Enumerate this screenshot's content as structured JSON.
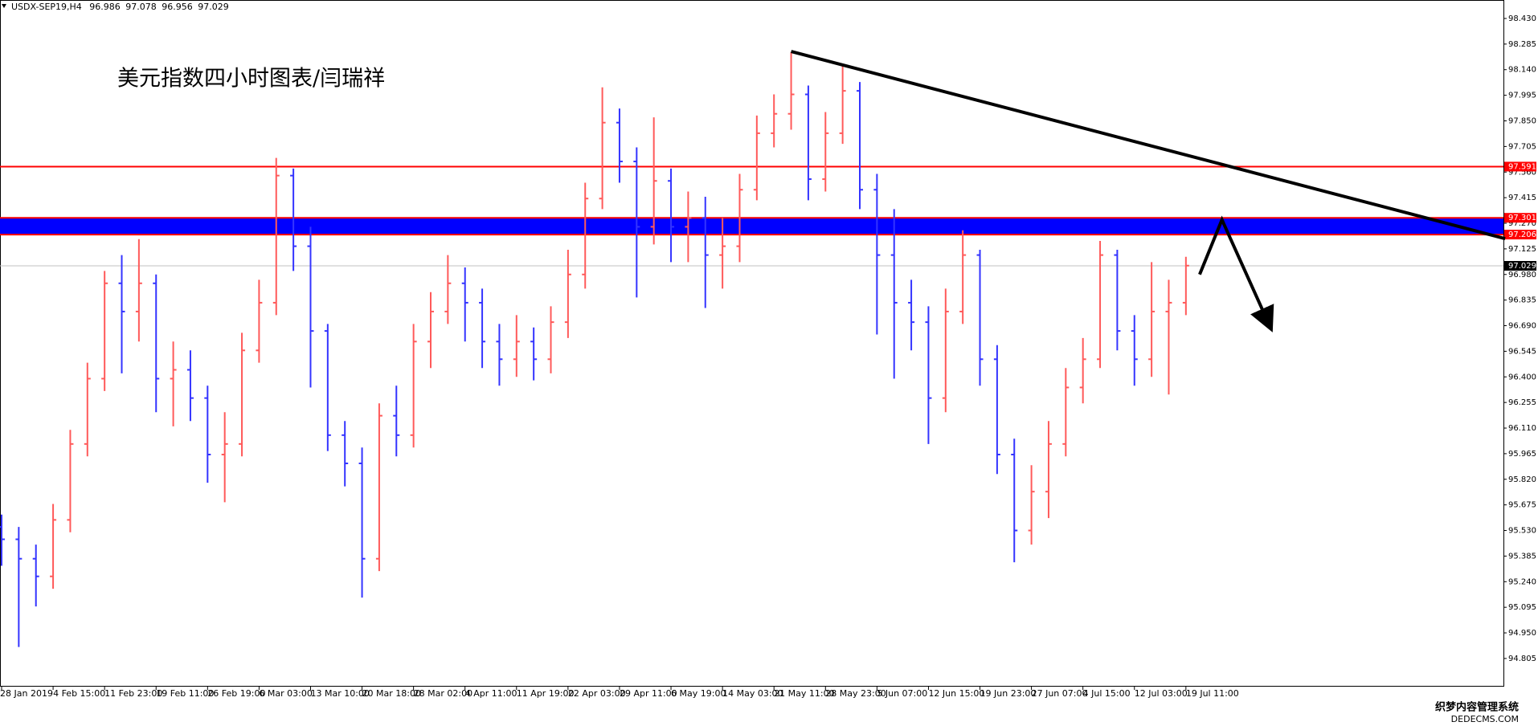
{
  "chart_data": {
    "type": "ohlc",
    "title": "USDX-SEP19,H4",
    "quote": {
      "open": 96.986,
      "high": 97.078,
      "low": 96.956,
      "close": 97.029
    },
    "annotation": "美元指数四小时图表/闫瑞祥",
    "up_color": "#ff5a5a",
    "down_color": "#3434ff",
    "categories": [
      "28 Jan 2019",
      null,
      null,
      "4 Feb 15:00",
      null,
      null,
      "11 Feb 23:00",
      null,
      null,
      "19 Feb 11:00",
      null,
      null,
      "26 Feb 19:00",
      null,
      null,
      "6 Mar 03:00",
      null,
      null,
      "13 Mar 10:00",
      null,
      null,
      "20 Mar 18:00",
      null,
      null,
      "28 Mar 02:00",
      null,
      null,
      "4 Apr 11:00",
      null,
      null,
      "11 Apr 19:00",
      null,
      null,
      "22 Apr 03:00",
      null,
      null,
      "29 Apr 11:00",
      null,
      null,
      "6 May 19:00",
      null,
      null,
      "14 May 03:00",
      null,
      null,
      "21 May 11:00",
      null,
      null,
      "28 May 23:00",
      null,
      null,
      "5 Jun 07:00",
      null,
      null,
      "12 Jun 15:00",
      null,
      null,
      "19 Jun 23:00",
      null,
      null,
      "27 Jun 07:00",
      null,
      null,
      "4 Jul 15:00",
      null,
      null,
      "12 Jul 03:00",
      null,
      null,
      "19 Jul 11:00"
    ],
    "open": [
      95.55,
      95.48,
      95.37,
      95.27,
      95.59,
      96.02,
      96.39,
      96.93,
      96.77,
      96.93,
      96.39,
      96.44,
      96.28,
      95.96,
      96.02,
      96.55,
      96.82,
      97.54,
      97.14,
      96.66,
      96.07,
      95.91,
      95.37,
      96.18,
      96.07,
      96.6,
      96.77,
      96.93,
      96.82,
      96.6,
      96.5,
      96.6,
      96.5,
      96.71,
      96.98,
      97.41,
      97.84,
      97.62,
      97.25,
      97.51,
      97.25,
      97.3,
      97.09,
      97.14,
      97.46,
      97.78,
      97.89,
      98.0,
      97.52,
      97.78,
      98.02,
      97.46,
      97.09,
      96.82,
      96.71,
      96.28,
      96.77,
      97.09,
      96.5,
      95.96,
      95.53,
      95.75,
      96.02,
      96.34,
      96.5,
      97.09,
      96.66,
      96.5,
      96.77,
      96.82
    ],
    "high": [
      95.62,
      95.55,
      95.45,
      95.68,
      96.1,
      96.48,
      97.0,
      97.09,
      97.18,
      96.98,
      96.6,
      96.55,
      96.35,
      96.2,
      96.65,
      96.95,
      97.64,
      97.58,
      97.25,
      96.7,
      96.15,
      96.0,
      96.25,
      96.35,
      96.7,
      96.88,
      97.09,
      97.02,
      96.9,
      96.7,
      96.75,
      96.68,
      96.8,
      97.12,
      97.5,
      98.04,
      97.92,
      97.7,
      97.87,
      97.58,
      97.45,
      97.42,
      97.3,
      97.55,
      97.88,
      98.0,
      98.24,
      98.05,
      97.9,
      98.17,
      98.07,
      97.55,
      97.35,
      96.95,
      96.8,
      96.9,
      97.23,
      97.12,
      96.58,
      96.05,
      95.9,
      96.15,
      96.45,
      96.62,
      97.17,
      97.12,
      96.75,
      97.05,
      96.95,
      97.08
    ],
    "low": [
      95.33,
      94.87,
      95.1,
      95.2,
      95.52,
      95.95,
      96.32,
      96.42,
      96.6,
      96.2,
      96.12,
      96.15,
      95.8,
      95.69,
      95.95,
      96.48,
      96.75,
      97.0,
      96.34,
      95.98,
      95.78,
      95.15,
      95.3,
      95.95,
      96.0,
      96.45,
      96.7,
      96.6,
      96.45,
      96.35,
      96.4,
      96.38,
      96.42,
      96.62,
      96.9,
      97.35,
      97.5,
      96.85,
      97.15,
      97.05,
      97.05,
      96.79,
      96.9,
      97.05,
      97.4,
      97.7,
      97.8,
      97.4,
      97.45,
      97.72,
      97.35,
      96.64,
      96.39,
      96.55,
      96.02,
      96.2,
      96.7,
      96.35,
      95.85,
      95.35,
      95.45,
      95.6,
      95.95,
      96.25,
      96.45,
      96.55,
      96.35,
      96.4,
      96.3,
      96.75
    ],
    "close": [
      95.48,
      95.37,
      95.27,
      95.59,
      96.02,
      96.39,
      96.93,
      96.77,
      96.93,
      96.39,
      96.44,
      96.28,
      95.96,
      96.02,
      96.55,
      96.82,
      97.54,
      97.14,
      96.66,
      96.07,
      95.91,
      95.37,
      96.18,
      96.07,
      96.6,
      96.77,
      96.93,
      96.82,
      96.6,
      96.5,
      96.6,
      96.5,
      96.71,
      96.98,
      97.41,
      97.84,
      97.62,
      97.25,
      97.51,
      97.25,
      97.3,
      97.09,
      97.14,
      97.46,
      97.78,
      97.89,
      98.0,
      97.52,
      97.78,
      98.02,
      97.46,
      97.09,
      96.82,
      96.71,
      96.28,
      96.77,
      97.09,
      96.5,
      95.96,
      95.53,
      95.75,
      96.02,
      96.34,
      96.5,
      97.09,
      96.66,
      96.5,
      96.77,
      96.82,
      97.03
    ],
    "ylim": [
      94.65,
      98.48
    ],
    "yticks": [
      {
        "value": 98.43,
        "label": "98.430"
      },
      {
        "value": 98.285,
        "label": "98.285"
      },
      {
        "value": 98.14,
        "label": "98.140"
      },
      {
        "value": 97.995,
        "label": "97.995"
      },
      {
        "value": 97.85,
        "label": "97.850"
      },
      {
        "value": 97.705,
        "label": "97.705"
      },
      {
        "value": 97.56,
        "label": "97.560"
      },
      {
        "value": 97.415,
        "label": "97.415"
      },
      {
        "value": 97.27,
        "label": "97.270"
      },
      {
        "value": 97.125,
        "label": "97.125"
      },
      {
        "value": 96.98,
        "label": "96.980"
      },
      {
        "value": 96.835,
        "label": "96.835"
      },
      {
        "value": 96.69,
        "label": "96.690"
      },
      {
        "value": 96.545,
        "label": "96.545"
      },
      {
        "value": 96.4,
        "label": "96.400"
      },
      {
        "value": 96.255,
        "label": "96.255"
      },
      {
        "value": 96.11,
        "label": "96.110"
      },
      {
        "value": 95.965,
        "label": "95.965"
      },
      {
        "value": 95.82,
        "label": "95.820"
      },
      {
        "value": 95.675,
        "label": "95.675"
      },
      {
        "value": 95.53,
        "label": "95.530"
      },
      {
        "value": 95.385,
        "label": "95.385"
      },
      {
        "value": 95.24,
        "label": "95.240"
      },
      {
        "value": 95.095,
        "label": "95.095"
      },
      {
        "value": 94.95,
        "label": "94.950"
      },
      {
        "value": 94.805,
        "label": "94.805"
      }
    ],
    "levels": [
      {
        "value": 97.591,
        "color": "#ff0000"
      },
      {
        "value": 97.301,
        "color": "#ff0000"
      },
      {
        "value": 97.206,
        "color": "#ff0000"
      },
      {
        "value": 97.029,
        "color": "#c0c0c0"
      }
    ],
    "zone": {
      "from": 97.206,
      "to": 97.301,
      "color": "#0000ff"
    },
    "trendline": {
      "x": [
        46,
        87.6
      ],
      "values": [
        98.243,
        97.183
      ],
      "color": "#000000"
    },
    "arrow": {
      "x": [
        69.8,
        71.1,
        73.9
      ],
      "values": [
        96.98,
        97.29,
        96.685
      ],
      "color": "#000000"
    },
    "watermark": [
      "织梦内容管理系统",
      "DEDECMS.COM"
    ]
  }
}
